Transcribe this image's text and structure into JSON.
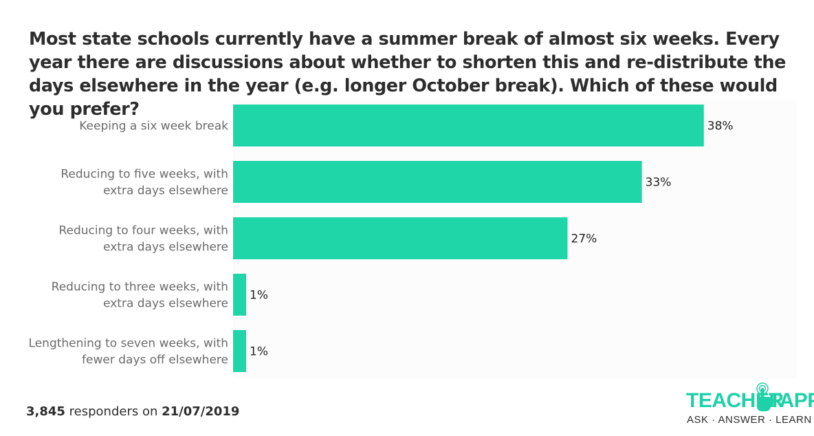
{
  "title": "Most state schools currently have a summer break of almost six weeks. Every year there are discussions about whether to shorten this and re-distribute the days elsewhere in the year (e.g. longer October break). Which of these would you prefer?",
  "footer": {
    "count": "3,845",
    "middle": " responders on ",
    "date": "21/07/2019"
  },
  "logo": {
    "word1": "TEACHER",
    "word2": "TAPP",
    "tagline": "ASK · ANSWER · LEARN",
    "icon": "pointing-hand-icon"
  },
  "colors": {
    "bar": "#1fd6a8",
    "title": "#2d2d2d",
    "label": "#6b6b6b",
    "brand": "#1fd1a7"
  },
  "chart_data": {
    "type": "bar",
    "orientation": "horizontal",
    "categories": [
      [
        "Keeping a six week break"
      ],
      [
        "Reducing to five weeks, with",
        "extra days elsewhere"
      ],
      [
        "Reducing to four weeks, with",
        "extra days elsewhere"
      ],
      [
        "Reducing to three weeks, with",
        "extra days elsewhere"
      ],
      [
        "Lengthening to seven weeks, with",
        "fewer days off elsewhere"
      ]
    ],
    "values": [
      38,
      33,
      27,
      1,
      1
    ],
    "value_labels": [
      "38%",
      "33%",
      "27%",
      "1%",
      "1%"
    ],
    "xlim": [
      0,
      50
    ],
    "grid": false,
    "legend": "none"
  }
}
